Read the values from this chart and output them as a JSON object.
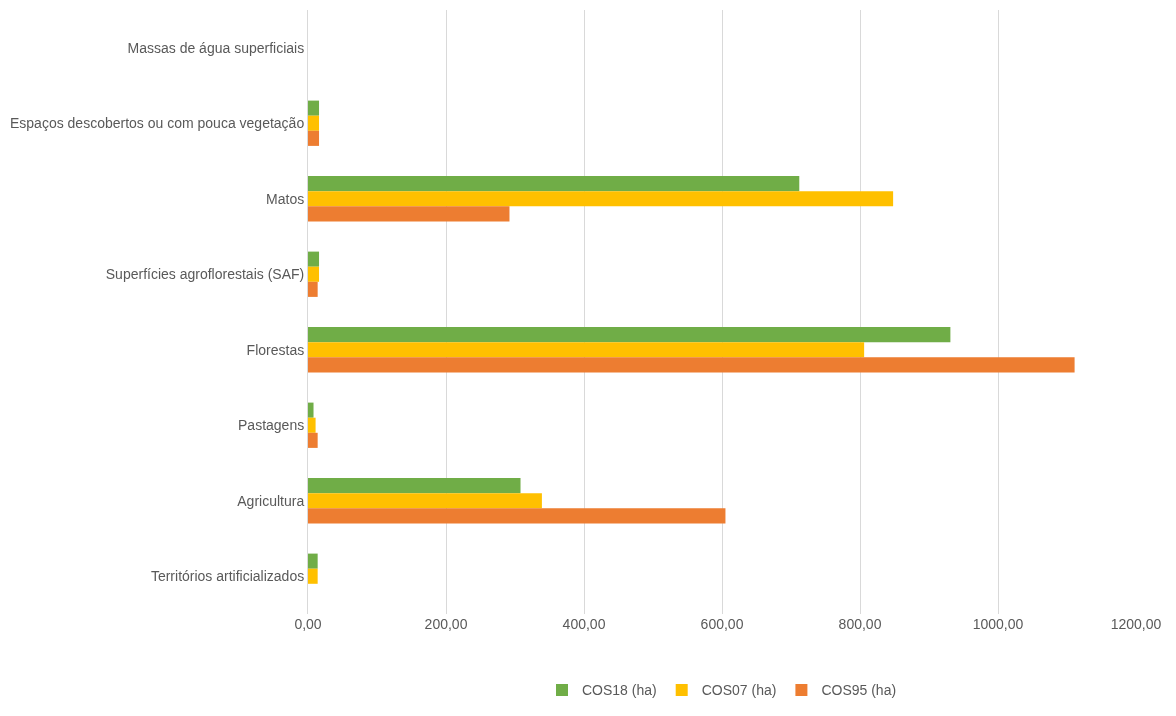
{
  "chart_data": {
    "type": "bar",
    "orientation": "horizontal",
    "categories": [
      "Massas de água superficiais",
      "Espaços descobertos ou com pouca vegetação",
      "Matos",
      "Superfícies agroflorestais (SAF)",
      "Florestas",
      "Pastagens",
      "Agricultura",
      "Territórios artificializados"
    ],
    "series": [
      {
        "name": "COS18 (ha)",
        "color": "#70ad47",
        "values": [
          0,
          16,
          712,
          16,
          931,
          8,
          308,
          14
        ]
      },
      {
        "name": "COS07 (ha)",
        "color": "#ffc000",
        "values": [
          0,
          16,
          848,
          16,
          806,
          11,
          339,
          14
        ]
      },
      {
        "name": "COS95 (ha)",
        "color": "#ed7d31",
        "values": [
          0,
          16,
          292,
          14,
          1111,
          14,
          605,
          0
        ]
      }
    ],
    "xlim": [
      0,
      1200
    ],
    "xticks": [
      {
        "value": 0,
        "label": "0,00"
      },
      {
        "value": 200,
        "label": "200,00"
      },
      {
        "value": 400,
        "label": "400,00"
      },
      {
        "value": 600,
        "label": "600,00"
      },
      {
        "value": 800,
        "label": "800,00"
      },
      {
        "value": 1000,
        "label": "1000,00"
      },
      {
        "value": 1200,
        "label": "1200,00"
      }
    ],
    "grid": "x",
    "legend": "bottom"
  }
}
